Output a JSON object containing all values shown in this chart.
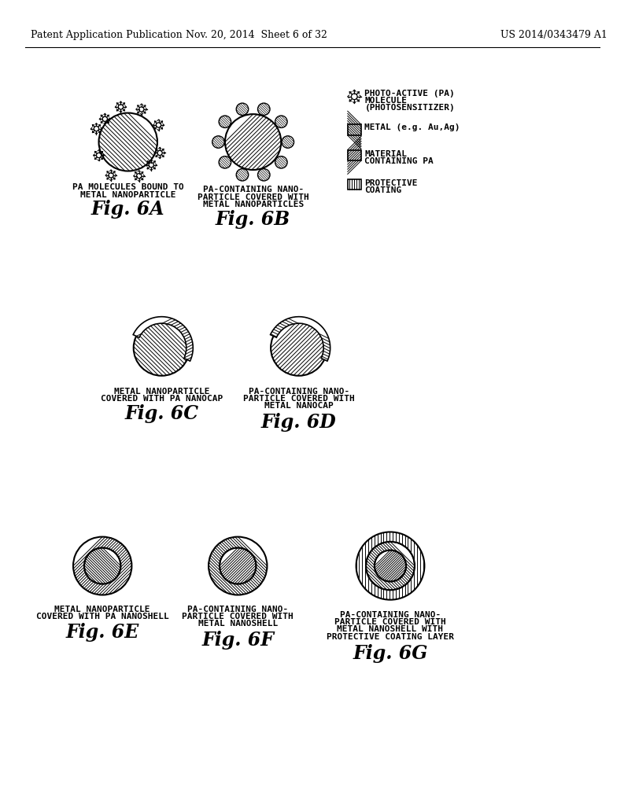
{
  "bg_color": "#ffffff",
  "header_left": "Patent Application Publication",
  "header_mid": "Nov. 20, 2014  Sheet 6 of 32",
  "header_right": "US 2014/0343479 A1",
  "fig6A_label": "Fig. 6A",
  "fig6A_desc1": "PA MOLECULES BOUND TO",
  "fig6A_desc2": "METAL NANOPARTICLE",
  "fig6B_label": "Fig. 6B",
  "fig6B_desc1": "PA-CONTAINING NANO-",
  "fig6B_desc2": "PARTICLE COVERED WITH",
  "fig6B_desc3": "METAL NANOPARTICLES",
  "fig6C_label": "Fig. 6C",
  "fig6C_desc1": "METAL NANOPARTICLE",
  "fig6C_desc2": "COVERED WITH PA NANOCAP",
  "fig6D_label": "Fig. 6D",
  "fig6D_desc1": "PA-CONTAINING NANO-",
  "fig6D_desc2": "PARTICLE COVERED WITH",
  "fig6D_desc3": "METAL NANOCAP",
  "fig6E_label": "Fig. 6E",
  "fig6E_desc1": "METAL NANOPARTICLE",
  "fig6E_desc2": "COVERED WITH PA NANOSHELL",
  "fig6F_label": "Fig. 6F",
  "fig6F_desc1": "PA-CONTAINING NANO-",
  "fig6F_desc2": "PARTICLE COVERED WITH",
  "fig6F_desc3": "METAL NANOSHELL",
  "fig6G_label": "Fig. 6G",
  "fig6G_desc1": "PA-CONTAINING NANO-",
  "fig6G_desc2": "PARTICLE COVERED WITH",
  "fig6G_desc3": "METAL NANOSHELL WITH",
  "fig6G_desc4": "PROTECTIVE COATING LAYER",
  "legend_pa_line1": "PHOTO-ACTIVE (PA)",
  "legend_pa_line2": "MOLECULE",
  "legend_pa_line3": "(PHOTOSENSITIZER)",
  "legend_metal": "METAL (e.g. Au,Ag)",
  "legend_mat_line1": "MATERIAL",
  "legend_mat_line2": "CONTAINING PA",
  "legend_coat_line1": "PROTECTIVE",
  "legend_coat_line2": "COATING"
}
